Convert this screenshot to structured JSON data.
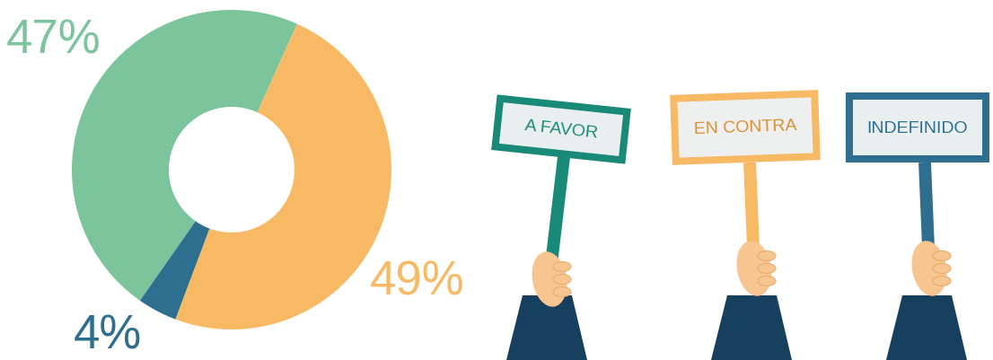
{
  "chart_data": {
    "type": "pie",
    "categories": [
      "A FAVOR",
      "EN CONTRA",
      "INDEFINIDO"
    ],
    "values": [
      47,
      49,
      4
    ],
    "value_labels": [
      "47%",
      "49%",
      "4%"
    ],
    "colors": [
      "#7cc49c",
      "#f8b965",
      "#2e6e8e"
    ],
    "data_labels": true
  }
}
